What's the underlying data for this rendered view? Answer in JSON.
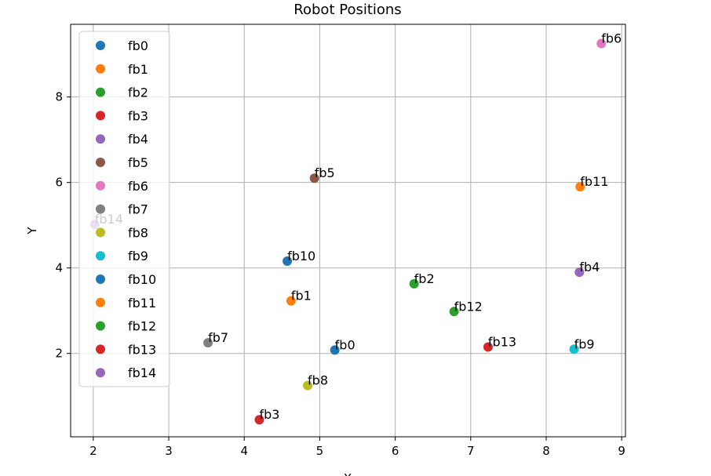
{
  "chart_data": {
    "type": "scatter",
    "title": "Robot Positions",
    "xlabel": "X",
    "ylabel": "Y",
    "xlim": [
      1.7,
      9.05
    ],
    "ylim": [
      0.05,
      9.7
    ],
    "xticks": [
      2,
      3,
      4,
      5,
      6,
      7,
      8,
      9
    ],
    "yticks": [
      2,
      4,
      6,
      8
    ],
    "grid": true,
    "legend_position": "upper-left",
    "series": [
      {
        "name": "fb0",
        "color": "#1f77b4",
        "x": 5.2,
        "y": 2.08
      },
      {
        "name": "fb1",
        "color": "#ff7f0e",
        "x": 4.62,
        "y": 3.23
      },
      {
        "name": "fb2",
        "color": "#2ca02c",
        "x": 6.25,
        "y": 3.63
      },
      {
        "name": "fb3",
        "color": "#d62728",
        "x": 4.2,
        "y": 0.45
      },
      {
        "name": "fb4",
        "color": "#9467bd",
        "x": 8.44,
        "y": 3.9
      },
      {
        "name": "fb5",
        "color": "#8c564b",
        "x": 4.93,
        "y": 6.1
      },
      {
        "name": "fb6",
        "color": "#e377c2",
        "x": 8.73,
        "y": 9.25
      },
      {
        "name": "fb7",
        "color": "#7f7f7f",
        "x": 3.52,
        "y": 2.25
      },
      {
        "name": "fb8",
        "color": "#bcbd22",
        "x": 4.84,
        "y": 1.25
      },
      {
        "name": "fb9",
        "color": "#17becf",
        "x": 8.37,
        "y": 2.1
      },
      {
        "name": "fb10",
        "color": "#1f77b4",
        "x": 4.57,
        "y": 4.16
      },
      {
        "name": "fb11",
        "color": "#ff7f0e",
        "x": 8.45,
        "y": 5.9
      },
      {
        "name": "fb12",
        "color": "#2ca02c",
        "x": 6.78,
        "y": 2.98
      },
      {
        "name": "fb13",
        "color": "#d62728",
        "x": 7.23,
        "y": 2.15
      },
      {
        "name": "fb14",
        "color": "#9467bd",
        "x": 2.02,
        "y": 5.02
      }
    ]
  }
}
